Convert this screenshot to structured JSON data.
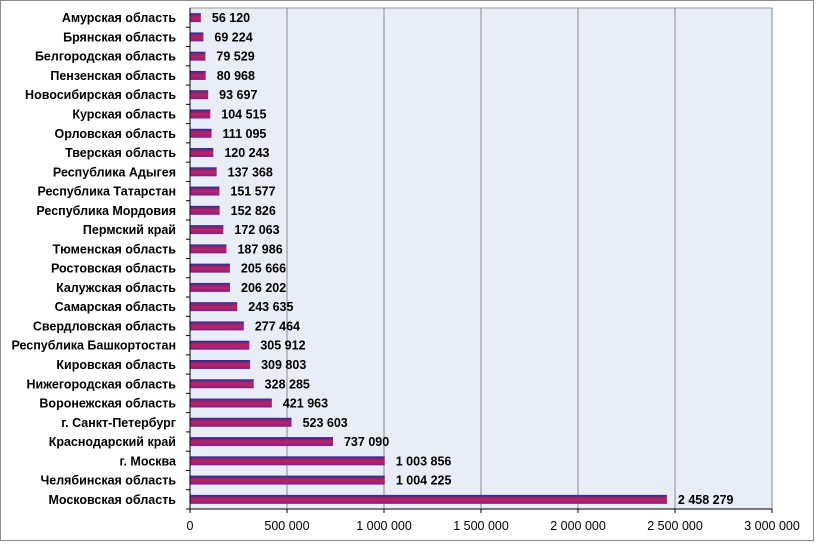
{
  "chart_data": {
    "type": "bar",
    "orientation": "horizontal",
    "categories": [
      "Амурская  область",
      "Брянская  область",
      "Белгородская  область",
      "Пензенская  область",
      "Новосибирская  область",
      "Курская  область",
      "Орловская  область",
      "Тверская  область",
      "Республика  Адыгея",
      "Республика  Татарстан",
      "Республика  Мордовия",
      "Пермский  край",
      "Тюменская  область",
      "Ростовская  область",
      "Калужская  область",
      "Самарская  область",
      "Свердловская  область",
      "Республика  Башкортостан",
      "Кировская  область",
      "Нижегородская  область",
      "Воронежская  область",
      "г.  Санкт-Петербург",
      "Краснодарский  край",
      "г.  Москва",
      "Челябинская  область",
      "Московская  область"
    ],
    "values": [
      56120,
      69224,
      79529,
      80968,
      93697,
      104515,
      111095,
      120243,
      137368,
      151577,
      152826,
      172063,
      187986,
      205666,
      206202,
      243635,
      277464,
      305912,
      309803,
      328285,
      421963,
      523603,
      737090,
      1003856,
      1004225,
      2458279
    ],
    "value_labels": [
      "56 120",
      "69 224",
      "79 529",
      "80 968",
      "93 697",
      "104 515",
      "111 095",
      "120 243",
      "137 368",
      "151 577",
      "152 826",
      "172 063",
      "187 986",
      "205 666",
      "206 202",
      "243 635",
      "277 464",
      "305 912",
      "309 803",
      "328 285",
      "421 963",
      "523 603",
      "737 090",
      "1 003 856",
      "1 004 225",
      "2 458 279"
    ],
    "x_ticks": [
      0,
      500000,
      1000000,
      1500000,
      2000000,
      2500000,
      3000000
    ],
    "x_tick_labels": [
      "0",
      "500 000",
      "1 000 000",
      "1 500 000",
      "2 000 000",
      "2 500 000",
      "3 000 000"
    ],
    "xlim": [
      0,
      3000000
    ],
    "grid": "vertical",
    "title": "",
    "xlabel": "",
    "ylabel": "",
    "colors": {
      "plot_bg": "#e9edf7",
      "bar_top": "#2e2d9e",
      "bar_mid": "#c4215a",
      "bar_bottom": "#7a2395",
      "grid": "#8a8a8a"
    }
  }
}
